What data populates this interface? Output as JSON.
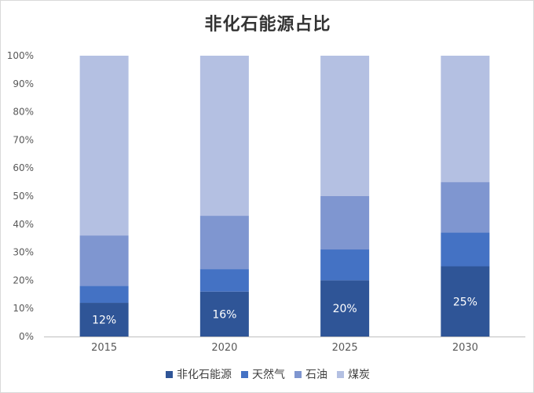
{
  "chart_data": {
    "type": "bar",
    "stacked": true,
    "title": "非化石能源占比",
    "categories": [
      "2015",
      "2020",
      "2025",
      "2030"
    ],
    "series": [
      {
        "name": "非化石能源",
        "values": [
          12,
          16,
          20,
          25
        ],
        "color": "#2f5597"
      },
      {
        "name": "天然气",
        "values": [
          6,
          8,
          11,
          12
        ],
        "color": "#4472c4"
      },
      {
        "name": "石油",
        "values": [
          18,
          19,
          19,
          18
        ],
        "color": "#7f96d0"
      },
      {
        "name": "煤炭",
        "values": [
          64,
          57,
          50,
          45
        ],
        "color": "#b4c0e2"
      }
    ],
    "data_labels": [
      "12%",
      "16%",
      "20%",
      "25%"
    ],
    "y_ticks": [
      "0%",
      "10%",
      "20%",
      "30%",
      "40%",
      "50%",
      "60%",
      "70%",
      "80%",
      "90%",
      "100%"
    ],
    "ylim": [
      0,
      100
    ],
    "grid": false,
    "legend_position": "bottom"
  }
}
